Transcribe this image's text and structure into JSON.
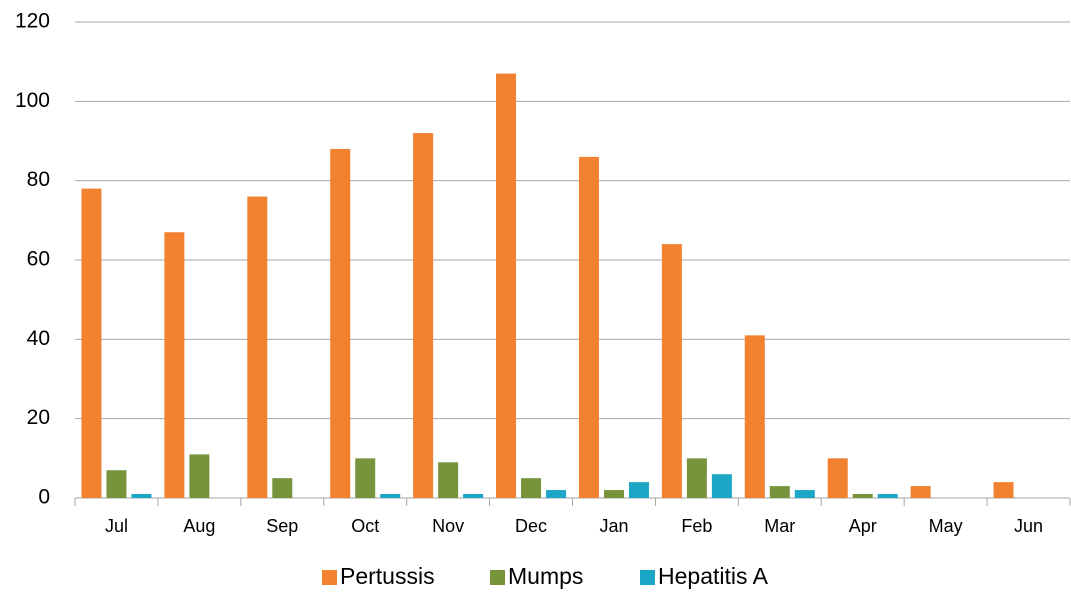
{
  "chart_data": {
    "type": "bar",
    "categories": [
      "Jul",
      "Aug",
      "Sep",
      "Oct",
      "Nov",
      "Dec",
      "Jan",
      "Feb",
      "Mar",
      "Apr",
      "May",
      "Jun"
    ],
    "series": [
      {
        "name": "Pertussis",
        "color": "#f28130",
        "values": [
          78,
          67,
          76,
          88,
          92,
          107,
          86,
          64,
          41,
          10,
          3,
          4
        ]
      },
      {
        "name": "Mumps",
        "color": "#77933c",
        "values": [
          7,
          11,
          5,
          10,
          9,
          5,
          2,
          10,
          3,
          1,
          0,
          0
        ]
      },
      {
        "name": "Hepatitis A",
        "color": "#1aa6c4",
        "values": [
          1,
          0,
          0,
          1,
          1,
          2,
          4,
          6,
          2,
          1,
          0,
          0
        ]
      }
    ],
    "ylim": [
      0,
      120
    ],
    "yticks": [
      0,
      20,
      40,
      60,
      80,
      100,
      120
    ],
    "grid": true,
    "legend": "bottom"
  }
}
